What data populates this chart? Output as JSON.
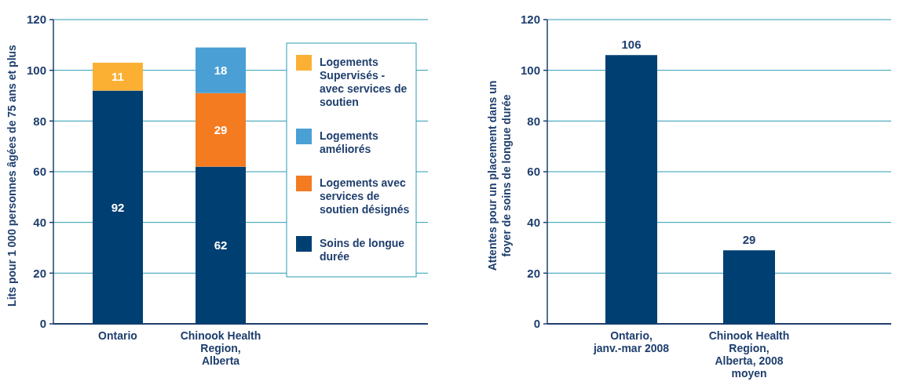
{
  "chart_data": [
    {
      "type": "bar",
      "stacked": true,
      "categories": [
        "Ontario",
        "Chinook Health Region, Alberta"
      ],
      "ylabel": "Lits pour 1 000 personnes âgées de 75 ans et plus",
      "ylim": [
        0,
        120
      ],
      "yticks": [
        0,
        20,
        40,
        60,
        80,
        100,
        120
      ],
      "grid": "y",
      "legend": "right",
      "data_labels": true,
      "series": [
        {
          "name": "Soins de longue durée",
          "color": "#003f72",
          "values": [
            92,
            62
          ]
        },
        {
          "name": "Logements avec services de soutien désignés",
          "color": "#f47b20",
          "values": [
            null,
            29
          ]
        },
        {
          "name": "Logements améliorés",
          "color": "#4a9fd5",
          "values": [
            null,
            18
          ]
        },
        {
          "name": "Logements Supervisés - avec services de soutien",
          "color": "#fbb034",
          "values": [
            11,
            null
          ]
        }
      ]
    },
    {
      "type": "bar",
      "categories": [
        "Ontario, janv.-mar 2008",
        "Chinook Health Region, Alberta, 2008 moyen"
      ],
      "ylabel": "Attentes pour un placement dans un foyer de soins de longue durée",
      "ylim": [
        0,
        120
      ],
      "yticks": [
        0,
        20,
        40,
        60,
        80,
        100,
        120
      ],
      "grid": "y",
      "data_labels": true,
      "values": [
        106,
        29
      ],
      "color": "#003f72"
    }
  ]
}
